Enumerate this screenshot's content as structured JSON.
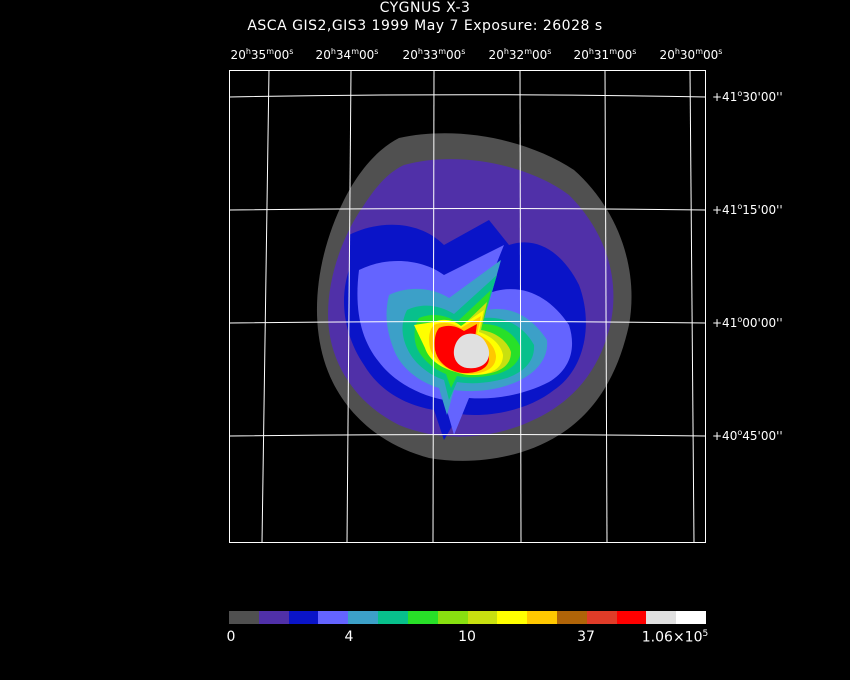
{
  "header": {
    "title": "CYGNUS X-3",
    "subtitle": "ASCA GIS2,GIS3   1999 May  7    Exposure: 26028 s"
  },
  "ra_labels": [
    {
      "h": "20",
      "m": "35",
      "s": "00"
    },
    {
      "h": "20",
      "m": "34",
      "s": "00"
    },
    {
      "h": "20",
      "m": "33",
      "s": "00"
    },
    {
      "h": "20",
      "m": "32",
      "s": "00"
    },
    {
      "h": "20",
      "m": "31",
      "s": "00"
    },
    {
      "h": "20",
      "m": "30",
      "s": "00"
    }
  ],
  "dec_labels": [
    {
      "d": "+41",
      "m": "30",
      "s": "00"
    },
    {
      "d": "+41",
      "m": "15",
      "s": "00"
    },
    {
      "d": "+41",
      "m": "00",
      "s": "00"
    },
    {
      "d": "+40",
      "m": "45",
      "s": "00"
    }
  ],
  "colorbar": {
    "colors": [
      "#505050",
      "#5030a8",
      "#0a14c8",
      "#6464ff",
      "#3ca0c8",
      "#08c08c",
      "#28e028",
      "#88e010",
      "#c8e010",
      "#ffff00",
      "#ffc800",
      "#b06408",
      "#e03c28",
      "#ff0000",
      "#e0e0e0",
      "#ffffff"
    ],
    "labels": [
      "0",
      "4",
      "10",
      "37",
      "1.06×10"
    ],
    "label_exp": "5"
  },
  "colors": {
    "background": "#000000",
    "grid": "#ffffff"
  }
}
